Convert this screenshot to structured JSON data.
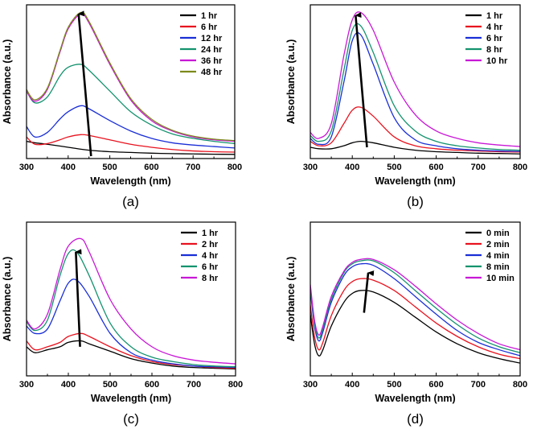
{
  "chart_data": [
    {
      "panel_label": "(a)",
      "type": "line",
      "xlabel": "Wavelength (nm)",
      "ylabel": "Absorbance (a.u.)",
      "xlim": [
        300,
        800
      ],
      "ylim": [
        0,
        1
      ],
      "x_ticks": [
        300,
        400,
        500,
        600,
        700,
        800
      ],
      "y_ticks_shown": false,
      "legend_position": "top-right",
      "arrow": {
        "from": [
          455,
          0.0
        ],
        "to": [
          425,
          0.96
        ]
      },
      "series": [
        {
          "name": "1 hr",
          "color": "#000000",
          "x": [
            300,
            320,
            350,
            400,
            450,
            500,
            550,
            600,
            650,
            700,
            750,
            800
          ],
          "y": [
            0.1,
            0.09,
            0.08,
            0.06,
            0.04,
            0.03,
            0.025,
            0.02,
            0.017,
            0.015,
            0.013,
            0.012
          ]
        },
        {
          "name": "6 hr",
          "color": "#e8131f",
          "x": [
            300,
            320,
            350,
            380,
            400,
            430,
            450,
            500,
            550,
            600,
            650,
            700,
            750,
            800
          ],
          "y": [
            0.13,
            0.08,
            0.085,
            0.11,
            0.13,
            0.145,
            0.14,
            0.11,
            0.08,
            0.06,
            0.045,
            0.035,
            0.03,
            0.027
          ]
        },
        {
          "name": "12 hr",
          "color": "#1a2fd6",
          "x": [
            300,
            320,
            350,
            380,
            400,
            430,
            450,
            500,
            550,
            600,
            650,
            700,
            750,
            800
          ],
          "y": [
            0.2,
            0.13,
            0.16,
            0.25,
            0.3,
            0.34,
            0.32,
            0.24,
            0.17,
            0.12,
            0.09,
            0.075,
            0.065,
            0.055
          ]
        },
        {
          "name": "24 hr",
          "color": "#14936e",
          "x": [
            300,
            320,
            350,
            380,
            400,
            430,
            450,
            500,
            550,
            600,
            650,
            700,
            750,
            800
          ],
          "y": [
            0.44,
            0.36,
            0.4,
            0.54,
            0.6,
            0.62,
            0.58,
            0.44,
            0.3,
            0.21,
            0.15,
            0.12,
            0.1,
            0.085
          ]
        },
        {
          "name": "36 hr",
          "color": "#c818d6",
          "x": [
            300,
            320,
            350,
            380,
            400,
            430,
            450,
            500,
            550,
            600,
            650,
            700,
            750,
            800
          ],
          "y": [
            0.44,
            0.37,
            0.45,
            0.7,
            0.86,
            0.96,
            0.9,
            0.62,
            0.38,
            0.24,
            0.17,
            0.13,
            0.11,
            0.1
          ]
        },
        {
          "name": "48 hr",
          "color": "#7d8a1c",
          "x": [
            300,
            320,
            350,
            380,
            400,
            430,
            450,
            500,
            550,
            600,
            650,
            700,
            750,
            800
          ],
          "y": [
            0.45,
            0.38,
            0.46,
            0.71,
            0.87,
            0.97,
            0.91,
            0.63,
            0.39,
            0.25,
            0.175,
            0.135,
            0.115,
            0.105
          ]
        }
      ]
    },
    {
      "panel_label": "(b)",
      "type": "line",
      "xlabel": "Wavelength (nm)",
      "ylabel": "Absorbance (a.u.)",
      "xlim": [
        300,
        800
      ],
      "ylim": [
        0,
        1
      ],
      "x_ticks": [
        300,
        400,
        500,
        600,
        700,
        800
      ],
      "y_ticks_shown": false,
      "legend_position": "top-right",
      "arrow": {
        "from": [
          435,
          0.06
        ],
        "to": [
          408,
          0.95
        ]
      },
      "series": [
        {
          "name": "1 hr",
          "color": "#000000",
          "x": [
            300,
            320,
            350,
            380,
            400,
            420,
            450,
            500,
            550,
            600,
            650,
            700,
            750,
            800
          ],
          "y": [
            0.06,
            0.05,
            0.05,
            0.07,
            0.09,
            0.1,
            0.09,
            0.06,
            0.04,
            0.03,
            0.025,
            0.02,
            0.018,
            0.015
          ]
        },
        {
          "name": "4 hr",
          "color": "#e8131f",
          "x": [
            300,
            320,
            350,
            380,
            400,
            420,
            450,
            500,
            550,
            600,
            650,
            700,
            750,
            800
          ],
          "y": [
            0.1,
            0.07,
            0.09,
            0.22,
            0.31,
            0.33,
            0.27,
            0.13,
            0.07,
            0.05,
            0.04,
            0.035,
            0.03,
            0.028
          ]
        },
        {
          "name": "6 hr",
          "color": "#1a2fd6",
          "x": [
            300,
            320,
            350,
            380,
            400,
            420,
            450,
            500,
            550,
            600,
            650,
            700,
            750,
            800
          ],
          "y": [
            0.12,
            0.08,
            0.13,
            0.5,
            0.78,
            0.82,
            0.62,
            0.26,
            0.11,
            0.07,
            0.05,
            0.04,
            0.035,
            0.032
          ]
        },
        {
          "name": "8 hr",
          "color": "#14936e",
          "x": [
            300,
            320,
            350,
            380,
            400,
            420,
            450,
            500,
            550,
            600,
            650,
            700,
            750,
            800
          ],
          "y": [
            0.14,
            0.1,
            0.17,
            0.58,
            0.85,
            0.88,
            0.7,
            0.34,
            0.17,
            0.1,
            0.07,
            0.055,
            0.045,
            0.04
          ]
        },
        {
          "name": "10 hr",
          "color": "#c818d6",
          "x": [
            300,
            320,
            350,
            380,
            400,
            420,
            450,
            500,
            550,
            600,
            650,
            700,
            750,
            800
          ],
          "y": [
            0.16,
            0.12,
            0.22,
            0.68,
            0.92,
            0.97,
            0.85,
            0.5,
            0.28,
            0.17,
            0.12,
            0.09,
            0.075,
            0.065
          ]
        }
      ]
    },
    {
      "panel_label": "(c)",
      "type": "line",
      "xlabel": "Wavelength (nm)",
      "ylabel": "Absorbance (a.u.)",
      "xlim": [
        300,
        800
      ],
      "ylim": [
        0,
        1
      ],
      "x_ticks": [
        300,
        400,
        500,
        600,
        700,
        800
      ],
      "y_ticks_shown": false,
      "legend_position": "top-right",
      "arrow": {
        "from": [
          428,
          0.18
        ],
        "to": [
          418,
          0.82
        ]
      },
      "series": [
        {
          "name": "1 hr",
          "color": "#000000",
          "x": [
            300,
            320,
            350,
            380,
            400,
            430,
            450,
            500,
            550,
            600,
            650,
            700,
            750,
            800
          ],
          "y": [
            0.18,
            0.14,
            0.16,
            0.18,
            0.21,
            0.22,
            0.2,
            0.15,
            0.1,
            0.07,
            0.05,
            0.04,
            0.035,
            0.03
          ]
        },
        {
          "name": "2 hr",
          "color": "#e8131f",
          "x": [
            300,
            320,
            350,
            380,
            400,
            430,
            450,
            500,
            550,
            600,
            650,
            700,
            750,
            800
          ],
          "y": [
            0.22,
            0.16,
            0.18,
            0.21,
            0.25,
            0.27,
            0.25,
            0.18,
            0.12,
            0.08,
            0.06,
            0.05,
            0.04,
            0.035
          ]
        },
        {
          "name": "4 hr",
          "color": "#1a2fd6",
          "x": [
            300,
            320,
            350,
            380,
            400,
            420,
            450,
            500,
            550,
            600,
            650,
            700,
            750,
            800
          ],
          "y": [
            0.32,
            0.27,
            0.3,
            0.49,
            0.61,
            0.63,
            0.52,
            0.27,
            0.14,
            0.09,
            0.065,
            0.05,
            0.045,
            0.04
          ]
        },
        {
          "name": "6 hr",
          "color": "#14936e",
          "x": [
            300,
            320,
            350,
            380,
            400,
            420,
            450,
            500,
            550,
            600,
            650,
            700,
            750,
            800
          ],
          "y": [
            0.35,
            0.29,
            0.36,
            0.66,
            0.81,
            0.82,
            0.66,
            0.34,
            0.18,
            0.11,
            0.08,
            0.06,
            0.05,
            0.045
          ]
        },
        {
          "name": "8 hr",
          "color": "#c818d6",
          "x": [
            300,
            320,
            350,
            380,
            400,
            430,
            450,
            500,
            550,
            600,
            650,
            700,
            750,
            800
          ],
          "y": [
            0.36,
            0.3,
            0.4,
            0.7,
            0.86,
            0.91,
            0.82,
            0.5,
            0.3,
            0.18,
            0.12,
            0.09,
            0.075,
            0.065
          ]
        }
      ]
    },
    {
      "panel_label": "(d)",
      "type": "line",
      "xlabel": "Wavelength (nm)",
      "ylabel": "Absorbance (a.u.)",
      "xlim": [
        300,
        800
      ],
      "ylim": [
        0,
        1
      ],
      "x_ticks": [
        300,
        400,
        500,
        600,
        700,
        800
      ],
      "y_ticks_shown": false,
      "legend_position": "top-right",
      "arrow": {
        "from": [
          428,
          0.41
        ],
        "to": [
          438,
          0.68
        ]
      },
      "series": [
        {
          "name": "0 min",
          "color": "#000000",
          "x": [
            300,
            310,
            320,
            330,
            350,
            380,
            400,
            420,
            450,
            500,
            550,
            600,
            650,
            700,
            750,
            800
          ],
          "y": [
            0.4,
            0.2,
            0.12,
            0.16,
            0.32,
            0.48,
            0.54,
            0.56,
            0.55,
            0.48,
            0.38,
            0.28,
            0.2,
            0.14,
            0.1,
            0.07
          ]
        },
        {
          "name": "2 min",
          "color": "#e8131f",
          "x": [
            300,
            310,
            320,
            330,
            350,
            380,
            400,
            420,
            450,
            500,
            550,
            600,
            650,
            700,
            750,
            800
          ],
          "y": [
            0.46,
            0.25,
            0.16,
            0.21,
            0.39,
            0.56,
            0.62,
            0.64,
            0.63,
            0.56,
            0.45,
            0.34,
            0.25,
            0.18,
            0.13,
            0.1
          ]
        },
        {
          "name": "4 min",
          "color": "#1a2fd6",
          "x": [
            300,
            310,
            320,
            330,
            350,
            380,
            400,
            420,
            450,
            500,
            550,
            600,
            650,
            700,
            750,
            800
          ],
          "y": [
            0.56,
            0.32,
            0.22,
            0.28,
            0.48,
            0.66,
            0.72,
            0.74,
            0.73,
            0.64,
            0.52,
            0.4,
            0.29,
            0.21,
            0.16,
            0.12
          ]
        },
        {
          "name": "8 min",
          "color": "#14936e",
          "x": [
            300,
            310,
            320,
            330,
            350,
            380,
            400,
            420,
            450,
            500,
            550,
            600,
            650,
            700,
            750,
            800
          ],
          "y": [
            0.58,
            0.34,
            0.24,
            0.3,
            0.5,
            0.68,
            0.74,
            0.76,
            0.76,
            0.68,
            0.56,
            0.44,
            0.33,
            0.24,
            0.18,
            0.14
          ]
        },
        {
          "name": "10 min",
          "color": "#c818d6",
          "x": [
            300,
            310,
            320,
            330,
            350,
            380,
            400,
            420,
            450,
            500,
            550,
            600,
            650,
            700,
            750,
            800
          ],
          "y": [
            0.6,
            0.36,
            0.26,
            0.32,
            0.52,
            0.69,
            0.75,
            0.77,
            0.77,
            0.7,
            0.59,
            0.47,
            0.36,
            0.27,
            0.2,
            0.16
          ]
        }
      ]
    }
  ]
}
